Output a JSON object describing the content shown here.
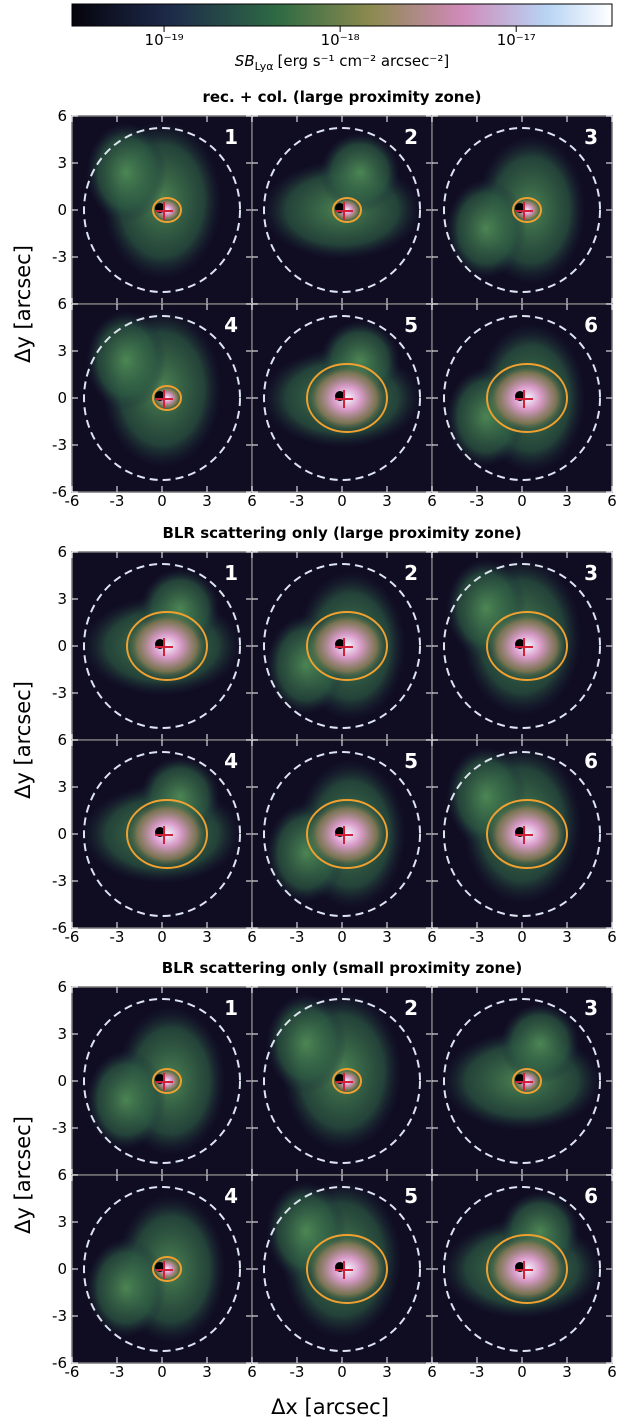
{
  "chart_data": {
    "type": "image-grid",
    "colorbar": {
      "label_main": "SB",
      "label_sub": "Lyα",
      "label_units": "[erg s⁻¹ cm⁻² arcsec⁻²]",
      "lim": [
        3e-20,
        3.5e-17
      ],
      "log": true,
      "ticks": [
        {
          "value": 1e-19,
          "label": "10⁻¹⁹"
        },
        {
          "value": 1e-18,
          "label": "10⁻¹⁸"
        },
        {
          "value": 1e-17,
          "label": "10⁻¹⁷"
        }
      ]
    },
    "xlabel": "Δx [arcsec]",
    "ylabel": "Δy [arcsec]",
    "xlim": [
      -6,
      6
    ],
    "ylim": [
      -6,
      6
    ],
    "xticks": [
      -6,
      -3,
      0,
      3,
      6
    ],
    "yticks": [
      -6,
      -3,
      0,
      3,
      6
    ],
    "groups": [
      {
        "title": "rec. + col. (large proximity zone)",
        "panels": [
          "1",
          "2",
          "3",
          "4",
          "5",
          "6"
        ]
      },
      {
        "title": "BLR scattering only (large proximity zone)",
        "panels": [
          "1",
          "2",
          "3",
          "4",
          "5",
          "6"
        ]
      },
      {
        "title": "BLR scattering only (small proximity zone)",
        "panels": [
          "1",
          "2",
          "3",
          "4",
          "5",
          "6"
        ]
      }
    ]
  }
}
